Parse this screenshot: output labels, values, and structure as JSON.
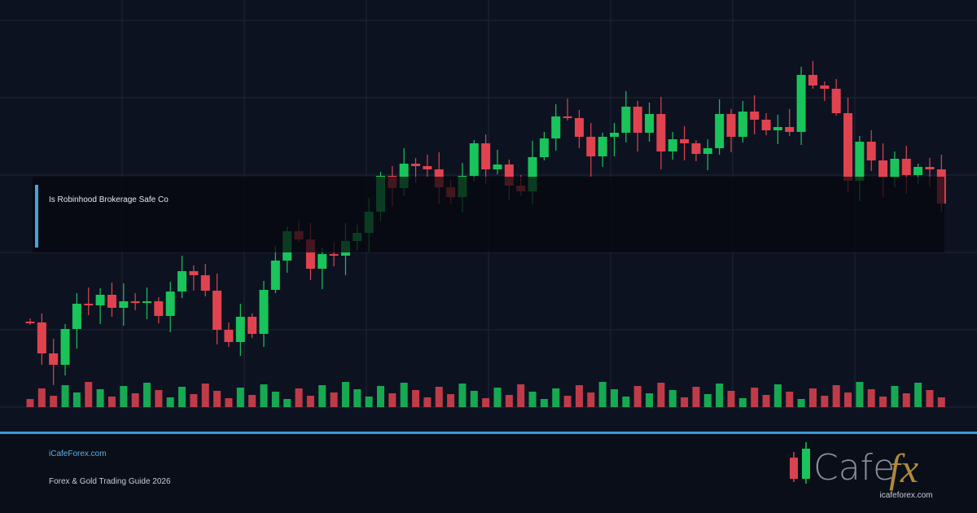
{
  "overlay_title": "Is Robinhood Brokerage Safe Co",
  "footer": {
    "site": "iCafeForex.com",
    "guide": "Forex & Gold Trading Guide 2026"
  },
  "logo": {
    "word": "Cafe",
    "accent": "fx",
    "url": "icafeforex.com"
  }
}
